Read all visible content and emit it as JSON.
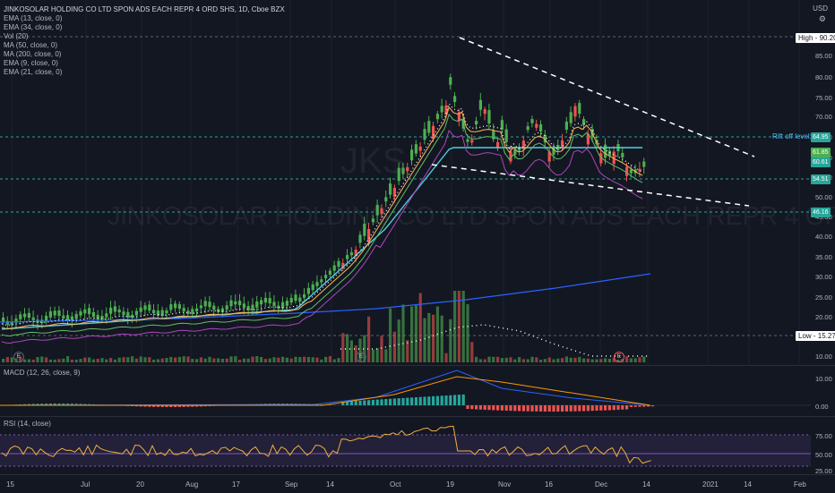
{
  "header": {
    "symbol_title": "JINKOSOLAR HOLDING CO LTD SPON ADS EACH REPR 4 ORD SHS, 1D, Cboe BZX",
    "currency": "USD",
    "indicators": [
      "EMA (13, close, 0)",
      "EMA (34, close, 0)",
      "Vol (20)",
      "MA (50, close, 0)",
      "MA (200, close, 0)",
      "EMA (9, close, 0)",
      "EMA (21, close, 0)"
    ]
  },
  "watermark": {
    "ticker": "JKS",
    "name": "JINKOSOLAR HOLDING CO LTD SPON ADS EACH REPR 4 ORD SHS"
  },
  "annotations": {
    "high_label": "High",
    "high_value": "90.20",
    "low_label": "Low",
    "low_value": "15.27",
    "rift_label": "Rift off level:",
    "rift_value": "64.95",
    "earnings_marker": "E"
  },
  "price_tags": {
    "current_1": "61.85",
    "current_2": "60.61",
    "support_1": "54.51",
    "support_2": "46.16"
  },
  "price_scale": [
    "85.00",
    "80.00",
    "75.00",
    "70.00",
    "65.00",
    "60.00",
    "55.00",
    "50.00",
    "45.00",
    "40.00",
    "35.00",
    "30.00",
    "25.00",
    "20.00",
    "15.00",
    "10.00"
  ],
  "macd": {
    "title": "MACD (12, 26, close, 9)",
    "scale": [
      "10.00",
      "0.00"
    ]
  },
  "rsi": {
    "title": "RSI (14, close)",
    "scale": [
      "75.00",
      "50.00",
      "25.00"
    ]
  },
  "time_axis": [
    "15",
    "Jul",
    "20",
    "Aug",
    "17",
    "Sep",
    "14",
    "Oct",
    "19",
    "Nov",
    "16",
    "Dec",
    "14",
    "2021",
    "14",
    "Feb"
  ],
  "colors": {
    "background": "#131722",
    "up": "#26a69a",
    "up_candle": "#4caf50",
    "down_candle": "#ef5350",
    "rsi_band": "#7e57c2",
    "cyan_line": "#4dd0e1",
    "blue_line": "#2962ff",
    "support_dash": "#26a69a",
    "macd_line": "#2962ff",
    "signal_line": "#ff9800",
    "rsi_line": "#f0b040"
  }
}
